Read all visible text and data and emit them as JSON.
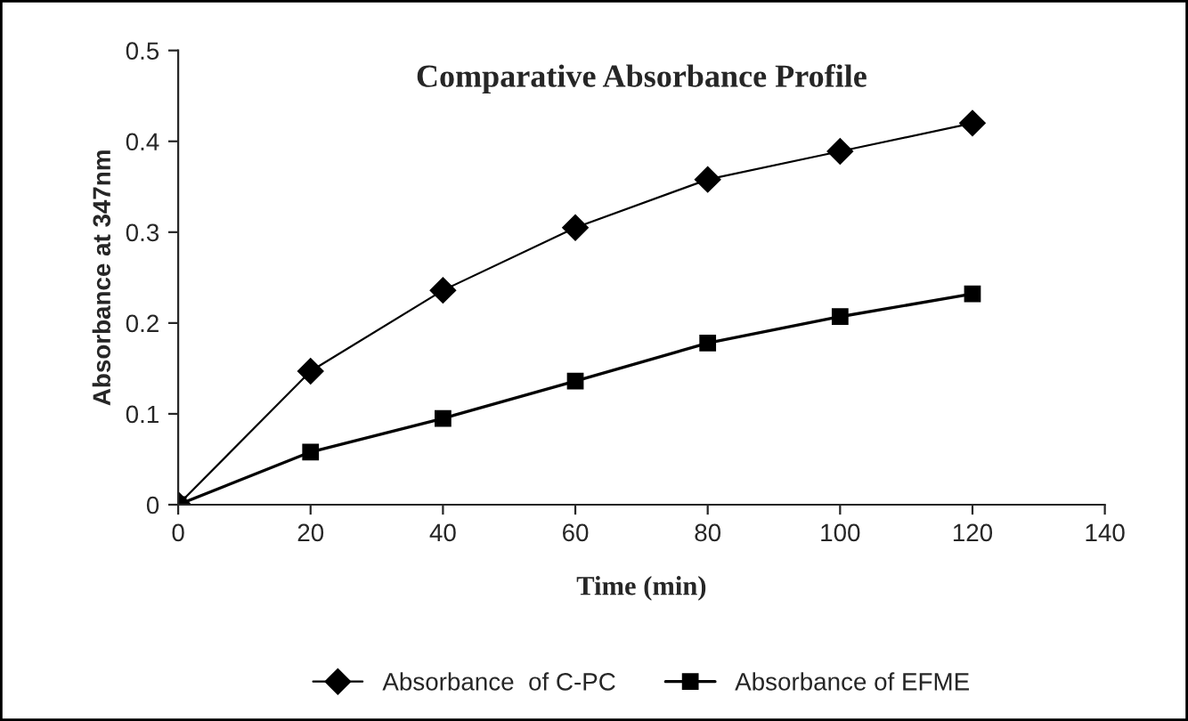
{
  "chart_data": {
    "type": "line",
    "title": "Comparative Absorbance Profile",
    "xlabel": "Time (min)",
    "ylabel": "Absorbance at 347nm",
    "x": [
      0,
      20,
      40,
      60,
      80,
      100,
      120
    ],
    "series": [
      {
        "name": "Absorbance  of C-PC",
        "color": "#000000",
        "marker": "diamond",
        "values": [
          0,
          0.147,
          0.236,
          0.305,
          0.358,
          0.389,
          0.42
        ]
      },
      {
        "name": "Absorbance of EFME",
        "color": "#000000",
        "marker": "square",
        "values": [
          0,
          0.058,
          0.095,
          0.136,
          0.178,
          0.207,
          0.232
        ]
      }
    ],
    "xlim": [
      0,
      140
    ],
    "xticks": [
      0,
      20,
      40,
      60,
      80,
      100,
      120,
      140
    ],
    "ylim": [
      0,
      0.5
    ],
    "yticks": [
      0,
      0.1,
      0.2,
      0.3,
      0.4,
      0.5
    ],
    "grid": false,
    "legend": "bottom",
    "line_style": "solid"
  }
}
